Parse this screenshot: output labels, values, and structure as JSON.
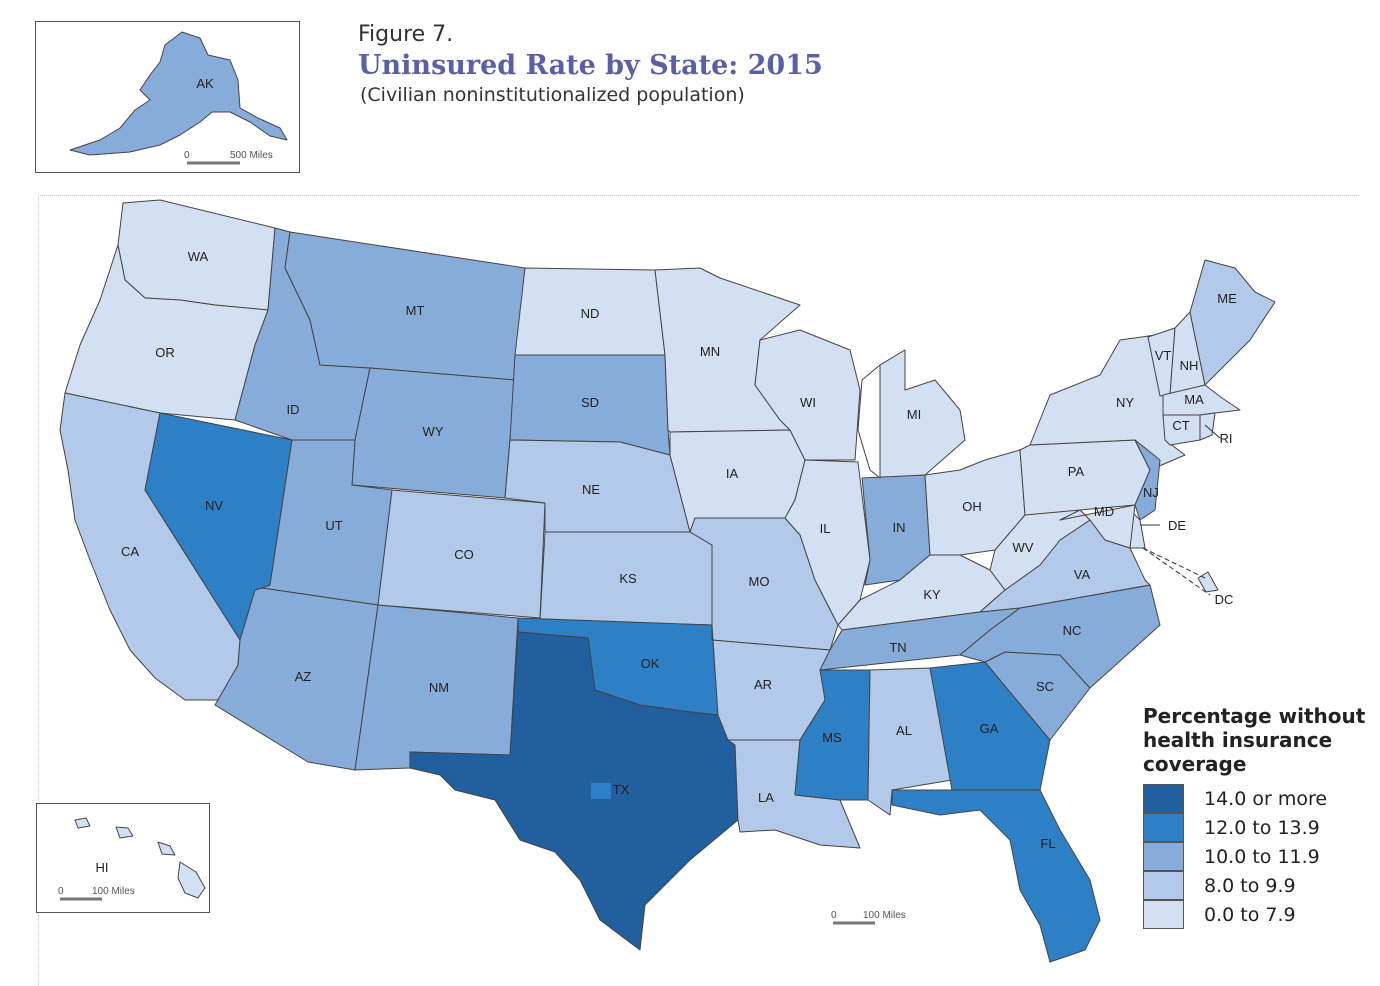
{
  "figure_label": "Figure 7.",
  "title": "Uninsured Rate by State: 2015",
  "subtitle": "(Civilian noninstitutionalized population)",
  "legend": {
    "title": "Percentage without health insurance coverage",
    "items": [
      {
        "label": "14.0 or more",
        "color": "#215f9e"
      },
      {
        "label": "12.0 to 13.9",
        "color": "#2d80c6"
      },
      {
        "label": "10.0 to 11.9",
        "color": "#88acd9"
      },
      {
        "label": "8.0 to 9.9",
        "color": "#b2c9e9"
      },
      {
        "label": "0.0 to 7.9",
        "color": "#d3e0f3"
      }
    ]
  },
  "scales": {
    "alaska": {
      "zero": "0",
      "label": "500 Miles"
    },
    "hawaii": {
      "zero": "0",
      "label": "100 Miles"
    },
    "mainland": {
      "zero": "0",
      "label": "100 Miles"
    }
  },
  "states": {
    "AK": {
      "label": "AK",
      "class": 2
    },
    "HI": {
      "label": "HI",
      "class": 4
    },
    "WA": {
      "label": "WA",
      "class": 4
    },
    "OR": {
      "label": "OR",
      "class": 4
    },
    "CA": {
      "label": "CA",
      "class": 3
    },
    "NV": {
      "label": "NV",
      "class": 1
    },
    "ID": {
      "label": "ID",
      "class": 2
    },
    "MT": {
      "label": "MT",
      "class": 2
    },
    "WY": {
      "label": "WY",
      "class": 2
    },
    "UT": {
      "label": "UT",
      "class": 2
    },
    "AZ": {
      "label": "AZ",
      "class": 2
    },
    "CO": {
      "label": "CO",
      "class": 3
    },
    "NM": {
      "label": "NM",
      "class": 2
    },
    "ND": {
      "label": "ND",
      "class": 4
    },
    "SD": {
      "label": "SD",
      "class": 2
    },
    "NE": {
      "label": "NE",
      "class": 3
    },
    "KS": {
      "label": "KS",
      "class": 3
    },
    "OK": {
      "label": "OK",
      "class": 1
    },
    "TX": {
      "label": "TX",
      "class": 0
    },
    "MN": {
      "label": "MN",
      "class": 4
    },
    "IA": {
      "label": "IA",
      "class": 4
    },
    "MO": {
      "label": "MO",
      "class": 3
    },
    "AR": {
      "label": "AR",
      "class": 3
    },
    "LA": {
      "label": "LA",
      "class": 3
    },
    "WI": {
      "label": "WI",
      "class": 4
    },
    "IL": {
      "label": "IL",
      "class": 4
    },
    "MI": {
      "label": "MI",
      "class": 4
    },
    "IN": {
      "label": "IN",
      "class": 2
    },
    "OH": {
      "label": "OH",
      "class": 4
    },
    "KY": {
      "label": "KY",
      "class": 4
    },
    "TN": {
      "label": "TN",
      "class": 2
    },
    "MS": {
      "label": "MS",
      "class": 1
    },
    "AL": {
      "label": "AL",
      "class": 3
    },
    "GA": {
      "label": "GA",
      "class": 1
    },
    "FL": {
      "label": "FL",
      "class": 1
    },
    "SC": {
      "label": "SC",
      "class": 2
    },
    "NC": {
      "label": "NC",
      "class": 2
    },
    "VA": {
      "label": "VA",
      "class": 3
    },
    "WV": {
      "label": "WV",
      "class": 4
    },
    "PA": {
      "label": "PA",
      "class": 4
    },
    "NY": {
      "label": "NY",
      "class": 4
    },
    "NJ": {
      "label": "NJ",
      "class": 2
    },
    "DE": {
      "label": "DE",
      "class": 4
    },
    "MD": {
      "label": "MD",
      "class": 4
    },
    "DC": {
      "label": "DC",
      "class": 4
    },
    "VT": {
      "label": "VT",
      "class": 4
    },
    "NH": {
      "label": "NH",
      "class": 4
    },
    "ME": {
      "label": "ME",
      "class": 3
    },
    "MA": {
      "label": "MA",
      "class": 4
    },
    "CT": {
      "label": "CT",
      "class": 4
    },
    "RI": {
      "label": "RI",
      "class": 4
    }
  }
}
